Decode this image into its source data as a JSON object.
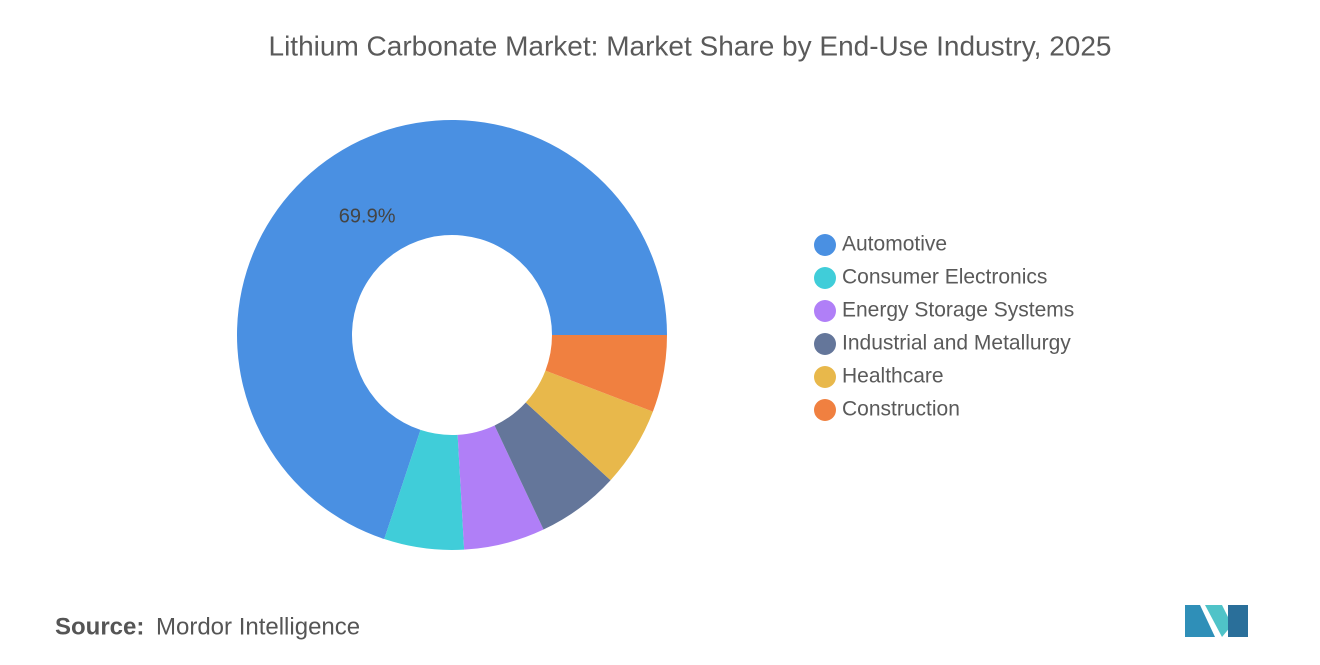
{
  "chart_data": {
    "type": "donut",
    "title": "Lithium Carbonate Market: Market Share by End-Use Industry, 2025",
    "categories": [
      "Automotive",
      "Consumer Electronics",
      "Energy Storage Systems",
      "Industrial and Metallurgy",
      "Healthcare",
      "Construction"
    ],
    "values": [
      69.9,
      6.0,
      6.1,
      6.2,
      6.0,
      5.8
    ],
    "value_labels": [
      "69.9%",
      null,
      null,
      null,
      null,
      null
    ],
    "colors": [
      "#4a90e2",
      "#40cdd9",
      "#b07ff7",
      "#64769a",
      "#e8b84b",
      "#f08040"
    ],
    "legend": "right"
  },
  "source_label": "Source:",
  "source": "Mordor Intelligence"
}
